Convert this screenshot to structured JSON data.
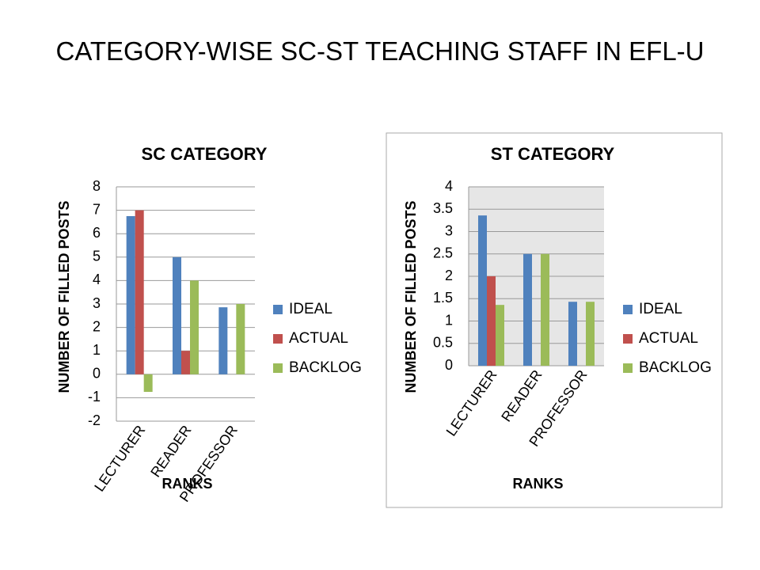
{
  "slide_title": "CATEGORY-WISE SC-ST TEACHING STAFF IN EFL-U",
  "chart_data": [
    {
      "type": "bar",
      "title": "SC CATEGORY",
      "x_label": "RANKS",
      "y_label": "NUMBER OF FILLED POSTS",
      "categories": [
        "LECTURER",
        "READER",
        "PROFESSOR"
      ],
      "series": [
        {
          "name": "IDEAL",
          "color": "#4f81bd",
          "values": [
            6.75,
            5,
            2.86
          ]
        },
        {
          "name": "ACTUAL",
          "color": "#c0504d",
          "values": [
            7,
            1,
            0
          ]
        },
        {
          "name": "BACKLOG",
          "color": "#9bbb59",
          "values": [
            -0.75,
            4,
            3
          ]
        }
      ],
      "ylim": [
        -2,
        8
      ],
      "yticks": [
        -2,
        -1,
        0,
        1,
        2,
        3,
        4,
        5,
        6,
        7,
        8
      ],
      "grid": true,
      "legend": "right"
    },
    {
      "type": "bar",
      "title": "ST CATEGORY",
      "x_label": "RANKS",
      "y_label": "NUMBER OF FILLED POSTS",
      "categories": [
        "LECTURER",
        "READER",
        "PROFESSOR"
      ],
      "series": [
        {
          "name": "IDEAL",
          "color": "#4f81bd",
          "values": [
            3.36,
            2.5,
            1.43
          ]
        },
        {
          "name": "ACTUAL",
          "color": "#c0504d",
          "values": [
            2,
            0,
            0
          ]
        },
        {
          "name": "BACKLOG",
          "color": "#9bbb59",
          "values": [
            1.36,
            2.5,
            1.43
          ]
        }
      ],
      "ylim": [
        0,
        4
      ],
      "yticks": [
        0,
        0.5,
        1,
        1.5,
        2,
        2.5,
        3,
        3.5,
        4
      ],
      "grid": true,
      "legend": "right",
      "plot_background": "#e6e6e6"
    }
  ]
}
